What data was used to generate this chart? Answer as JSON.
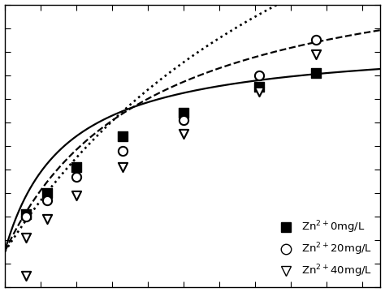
{
  "background_color": "#ffffff",
  "xlim": [
    0,
    1.05
  ],
  "ylim": [
    -0.15,
    1.05
  ],
  "zn0": {
    "x": [
      0.06,
      0.12,
      0.2,
      0.33,
      0.5,
      0.71,
      0.87
    ],
    "y": [
      0.16,
      0.25,
      0.36,
      0.49,
      0.59,
      0.7,
      0.76
    ],
    "Qmax": 0.9,
    "b": 6.0
  },
  "zn20": {
    "x": [
      0.06,
      0.12,
      0.2,
      0.33,
      0.5,
      0.71,
      0.87
    ],
    "y": [
      0.15,
      0.22,
      0.32,
      0.43,
      0.56,
      0.75,
      0.9
    ],
    "Qmax": 1.3,
    "b": 2.5
  },
  "zn40": {
    "x": [
      0.06,
      0.12,
      0.2,
      0.33,
      0.5,
      0.71,
      0.87
    ],
    "y": [
      0.06,
      0.14,
      0.24,
      0.36,
      0.5,
      0.68,
      0.84
    ],
    "extra_x": [
      0.06
    ],
    "extra_y": [
      -0.1
    ],
    "Qmax": 2.5,
    "b": 0.95
  },
  "xticks_n": 11,
  "yticks_n": 13,
  "legend_fontsize": 9.5,
  "marker_size": 65,
  "line_width": 1.6
}
